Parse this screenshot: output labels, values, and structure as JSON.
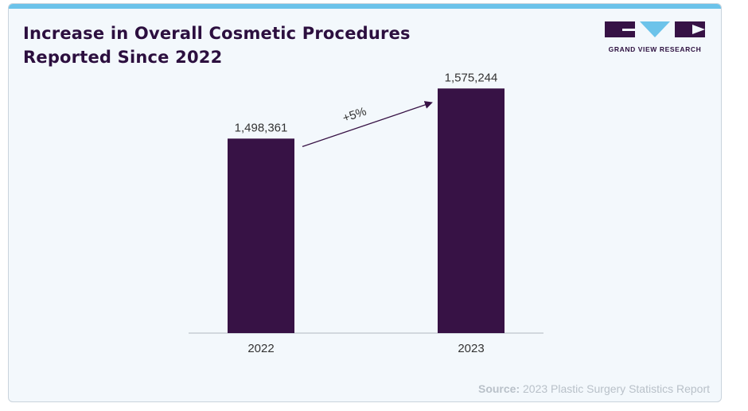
{
  "title_line1": "Increase in Overall Cosmetic Procedures",
  "title_line2": "Reported Since 2022",
  "logo_text": "GRAND VIEW RESEARCH",
  "source_label": "Source:",
  "source_text": " 2023 Plastic Surgery Statistics Report",
  "colors": {
    "bar": "#371245",
    "accent": "#6cc3ea",
    "background": "#f3f8fc",
    "title": "#2c0f3f"
  },
  "chart_data": {
    "type": "bar",
    "categories": [
      "2022",
      "2023"
    ],
    "values": [
      1498361,
      1575244
    ],
    "value_labels": [
      "1,498,361",
      "1,575,244"
    ],
    "annotation": "+5%",
    "title": "Increase in Overall Cosmetic Procedures Reported Since 2022",
    "xlabel": "",
    "ylabel": "",
    "grid": false
  }
}
